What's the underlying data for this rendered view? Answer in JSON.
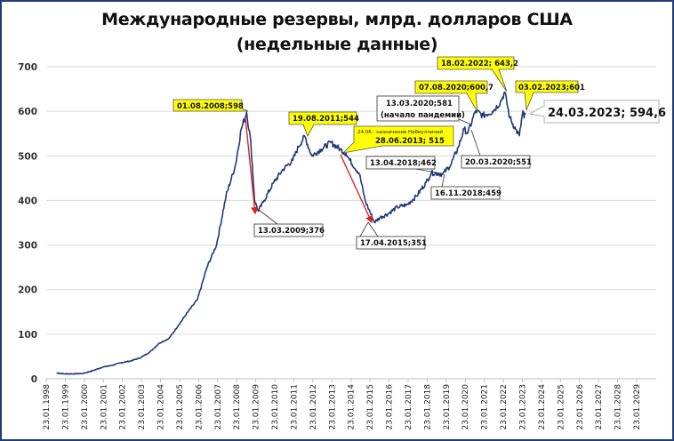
{
  "title_line1": "Международные резервы, млрд. долларов США",
  "title_line2": "(недельные данные)",
  "colors": {
    "series": "#1f3a7a",
    "arrow": "#e02020",
    "callout_yellow": "#ffff00",
    "callout_white": "#ffffff",
    "frame": "#1f3b7a",
    "grid": "#d9d9d9"
  },
  "chart_data": {
    "type": "line",
    "title": "Международные резервы, млрд. долларов США (недельные данные)",
    "xlabel": "",
    "ylabel": "",
    "ylim": [
      0,
      700
    ],
    "yticks": [
      0,
      100,
      200,
      300,
      400,
      500,
      600,
      700
    ],
    "grid": true,
    "legend": "none",
    "x_tick_labels": [
      "23.01.1998",
      "23.01.1999",
      "23.01.2000",
      "23.01.2001",
      "23.01.2002",
      "23.01.2003",
      "23.01.2004",
      "23.01.2005",
      "23.01.2006",
      "23.01.2007",
      "23.01.2008",
      "23.01.2009",
      "23.01.2010",
      "23.01.2011",
      "23.01.2012",
      "23.01.2013",
      "23.01.2014",
      "23.01.2015",
      "23.01.2016",
      "23.01.2017",
      "23.01.2018",
      "23.01.2019",
      "23.01.2020",
      "23.01.2021",
      "23.01.2022",
      "23.01.2023",
      "23.01.2024",
      "23.01.2025",
      "23.01.2026",
      "23.01.2027",
      "23.01.2028",
      "23.01.2029"
    ],
    "series": [
      {
        "name": "Международные резервы",
        "x": [
          1998.6,
          1999.0,
          1999.5,
          2000.0,
          2000.5,
          2001.0,
          2001.5,
          2002.0,
          2002.5,
          2003.0,
          2003.5,
          2004.0,
          2004.5,
          2005.0,
          2005.5,
          2006.0,
          2006.5,
          2007.0,
          2007.5,
          2008.0,
          2008.3,
          2008.58,
          2008.8,
          2009.0,
          2009.2,
          2009.5,
          2010.0,
          2010.5,
          2011.0,
          2011.3,
          2011.63,
          2012.0,
          2012.5,
          2013.0,
          2013.49,
          2013.8,
          2014.0,
          2014.5,
          2014.8,
          2015.0,
          2015.29,
          2015.6,
          2016.0,
          2016.5,
          2017.0,
          2017.5,
          2018.0,
          2018.28,
          2018.6,
          2018.88,
          2019.3,
          2019.7,
          2020.0,
          2020.2,
          2020.6,
          2021.0,
          2021.5,
          2021.9,
          2022.13,
          2022.4,
          2022.7,
          2022.9,
          2023.09,
          2023.15,
          2023.23
        ],
        "values": [
          13,
          11,
          11,
          12,
          18,
          26,
          30,
          36,
          40,
          47,
          60,
          80,
          90,
          120,
          150,
          178,
          250,
          300,
          410,
          480,
          560,
          598,
          530,
          400,
          376,
          400,
          440,
          470,
          490,
          520,
          544,
          500,
          515,
          530,
          515,
          505,
          490,
          460,
          400,
          380,
          351,
          362,
          370,
          385,
          390,
          410,
          440,
          462,
          460,
          459,
          480,
          520,
          560,
          551,
          600.7,
          590,
          600,
          620,
          643.2,
          585,
          560,
          545,
          601,
          585,
          594.6
        ]
      }
    ],
    "annotations": [
      {
        "text": "01.08.2008;598",
        "date": "01.08.2008",
        "value": 598,
        "style": "yellow"
      },
      {
        "text": "13.03.2009;376",
        "date": "13.03.2009",
        "value": 376,
        "style": "white"
      },
      {
        "text": "19.08.2011;544",
        "date": "19.08.2011",
        "value": 544,
        "style": "yellow"
      },
      {
        "text": "24.06 - назначение Набиуллиной",
        "style": "yellow",
        "note": true
      },
      {
        "text": "28.06.2013; 515",
        "date": "28.06.2013",
        "value": 515,
        "style": "yellow"
      },
      {
        "text": "17.04.2015;351",
        "date": "17.04.2015",
        "value": 351,
        "style": "white"
      },
      {
        "text": "13.04.2018;462",
        "date": "13.04.2018",
        "value": 462,
        "style": "white"
      },
      {
        "text": "16.11.2018;459",
        "date": "16.11.2018",
        "value": 459,
        "style": "white"
      },
      {
        "text": "13.03.2020;581",
        "date": "13.03.2020",
        "value": 581,
        "style": "white"
      },
      {
        "text": "(начало пандемии)",
        "style": "white",
        "note": true
      },
      {
        "text": "20.03.2020;551",
        "date": "20.03.2020",
        "value": 551,
        "style": "white"
      },
      {
        "text": "07.08.2020;600,7",
        "date": "07.08.2020",
        "value": 600.7,
        "style": "yellow"
      },
      {
        "text": "18.02.2022; 643,2",
        "date": "18.02.2022",
        "value": 643.2,
        "style": "yellow"
      },
      {
        "text": "03.02.2023;601",
        "date": "03.02.2023",
        "value": 601,
        "style": "yellow"
      },
      {
        "text": "24.03.2023; 594,6",
        "date": "24.03.2023",
        "value": 594.6,
        "style": "white-large"
      }
    ],
    "arrows": [
      {
        "from": "01.08.2008",
        "to": "13.03.2009",
        "color": "#e02020"
      },
      {
        "from": "28.06.2013",
        "to": "17.04.2015",
        "color": "#e02020"
      }
    ]
  },
  "labels": {
    "a2008": "01.08.2008;598",
    "a2009": "13.03.2009;376",
    "a2011": "19.08.2011;544",
    "a2013_note": "24.06  - назначение Набиуллиной",
    "a2013": "28.06.2013; 515",
    "a2015": "17.04.2015;351",
    "a2018a": "13.04.2018;462",
    "a2018b": "16.11.2018;459",
    "a2020a_l1": "13.03.2020;581",
    "a2020a_l2": "(начало пандемии)",
    "a2020b": "20.03.2020;551",
    "a2020c": "07.08.2020;600,7",
    "a2022": "18.02.2022; 643,2",
    "a2023a": "03.02.2023;601",
    "a2023b": "24.03.2023; 594,6"
  }
}
